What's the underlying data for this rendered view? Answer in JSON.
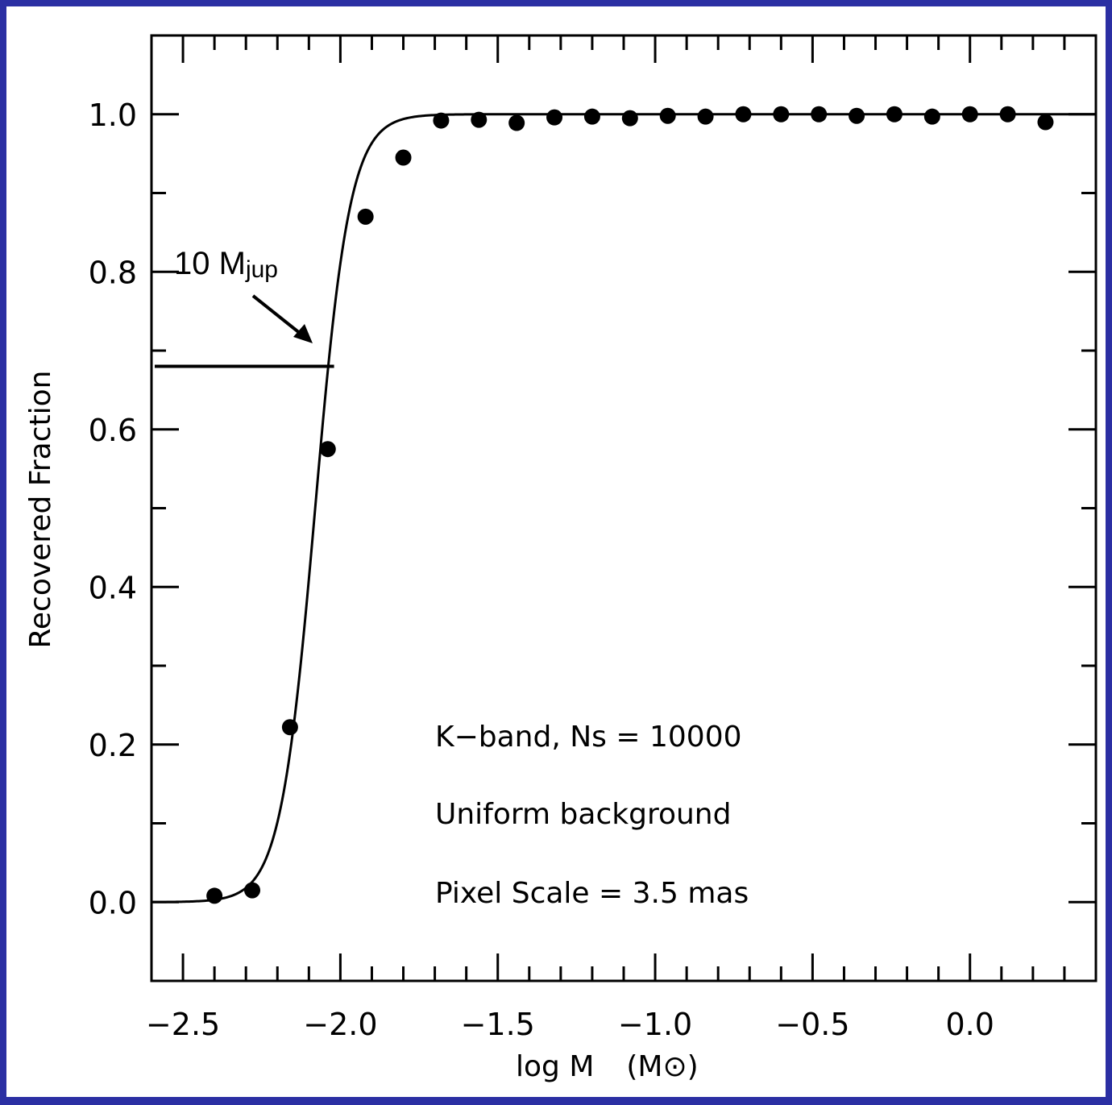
{
  "chart_data": {
    "type": "scatter",
    "xlabel": "log M",
    "xlabel_unit": "(M⊙)",
    "ylabel": "Recovered Fraction",
    "xlim": [
      -2.6,
      0.4
    ],
    "ylim": [
      -0.1,
      1.1
    ],
    "x_ticks": [
      -2.5,
      -2.0,
      -1.5,
      -1.0,
      -0.5,
      0.0
    ],
    "x_tick_labels": [
      "−2.5",
      "−2.0",
      "−1.5",
      "−1.0",
      "−0.5",
      "0.0"
    ],
    "y_ticks": [
      0.0,
      0.2,
      0.4,
      0.6,
      0.8,
      1.0
    ],
    "y_tick_labels": [
      "0.0",
      "0.2",
      "0.4",
      "0.6",
      "0.8",
      "1.0"
    ],
    "grid": false,
    "points": {
      "x": [
        -2.4,
        -2.28,
        -2.16,
        -2.04,
        -1.92,
        -1.8,
        -1.68,
        -1.56,
        -1.44,
        -1.32,
        -1.2,
        -1.08,
        -0.96,
        -0.84,
        -0.72,
        -0.6,
        -0.48,
        -0.36,
        -0.24,
        -0.12,
        0.0,
        0.12,
        0.24
      ],
      "y": [
        0.008,
        0.015,
        0.222,
        0.575,
        0.87,
        0.945,
        0.992,
        0.993,
        0.989,
        0.996,
        0.997,
        0.995,
        0.998,
        0.997,
        1.0,
        1.0,
        1.0,
        0.998,
        1.0,
        0.997,
        1.0,
        1.0,
        0.99
      ]
    },
    "fit_curve": {
      "type": "logistic",
      "midpoint": -2.08,
      "width": 0.055,
      "x_range": [
        -2.6,
        0.4
      ]
    },
    "threshold_line": {
      "y": 0.68,
      "x_start": -2.6,
      "x_end": -2.02
    },
    "annotations": {
      "callout_main": "10 M",
      "callout_sub": "jup",
      "notes": [
        "K−band, Ns = 10000",
        "Uniform background",
        "Pixel Scale = 3.5 mas"
      ]
    }
  }
}
